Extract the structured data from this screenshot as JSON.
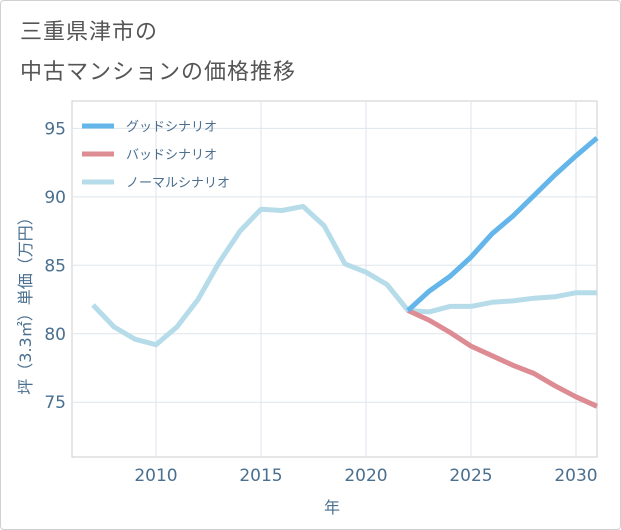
{
  "title_line1": "三重県津市の",
  "title_line2": "中古マンションの価格推移",
  "chart_data": {
    "type": "line",
    "xlabel": "年",
    "ylabel": "坪（3.3㎡）単価（万円）",
    "xlim": [
      2006,
      2031
    ],
    "ylim": [
      71,
      97
    ],
    "x_ticks": [
      2010,
      2015,
      2020,
      2025,
      2030
    ],
    "y_ticks": [
      75,
      80,
      85,
      90,
      95
    ],
    "grid": true,
    "legend_position": "top-left",
    "series": [
      {
        "name": "グッドシナリオ",
        "color": "#63b5ea",
        "points": [
          [
            2022,
            81.7
          ],
          [
            2023,
            83.1
          ],
          [
            2024,
            84.2
          ],
          [
            2025,
            85.6
          ],
          [
            2026,
            87.3
          ],
          [
            2027,
            88.6
          ],
          [
            2028,
            90.1
          ],
          [
            2029,
            91.6
          ],
          [
            2030,
            93.0
          ],
          [
            2031,
            94.3
          ]
        ]
      },
      {
        "name": "バッドシナリオ",
        "color": "#de8c93",
        "points": [
          [
            2022,
            81.7
          ],
          [
            2023,
            81.0
          ],
          [
            2024,
            80.1
          ],
          [
            2025,
            79.1
          ],
          [
            2026,
            78.4
          ],
          [
            2027,
            77.7
          ],
          [
            2028,
            77.1
          ],
          [
            2029,
            76.2
          ],
          [
            2030,
            75.4
          ],
          [
            2031,
            74.7
          ]
        ]
      },
      {
        "name": "ノーマルシナリオ",
        "color": "#b6dcea",
        "points": [
          [
            2007,
            82.1
          ],
          [
            2008,
            80.5
          ],
          [
            2009,
            79.6
          ],
          [
            2010,
            79.2
          ],
          [
            2011,
            80.5
          ],
          [
            2012,
            82.5
          ],
          [
            2013,
            85.2
          ],
          [
            2014,
            87.5
          ],
          [
            2015,
            89.1
          ],
          [
            2016,
            89.0
          ],
          [
            2017,
            89.3
          ],
          [
            2018,
            87.9
          ],
          [
            2019,
            85.1
          ],
          [
            2020,
            84.5
          ],
          [
            2021,
            83.6
          ],
          [
            2022,
            81.7
          ],
          [
            2023,
            81.6
          ],
          [
            2024,
            82.0
          ],
          [
            2025,
            82.0
          ],
          [
            2026,
            82.3
          ],
          [
            2027,
            82.4
          ],
          [
            2028,
            82.6
          ],
          [
            2029,
            82.7
          ],
          [
            2030,
            83.0
          ],
          [
            2031,
            83.0
          ]
        ]
      }
    ]
  }
}
